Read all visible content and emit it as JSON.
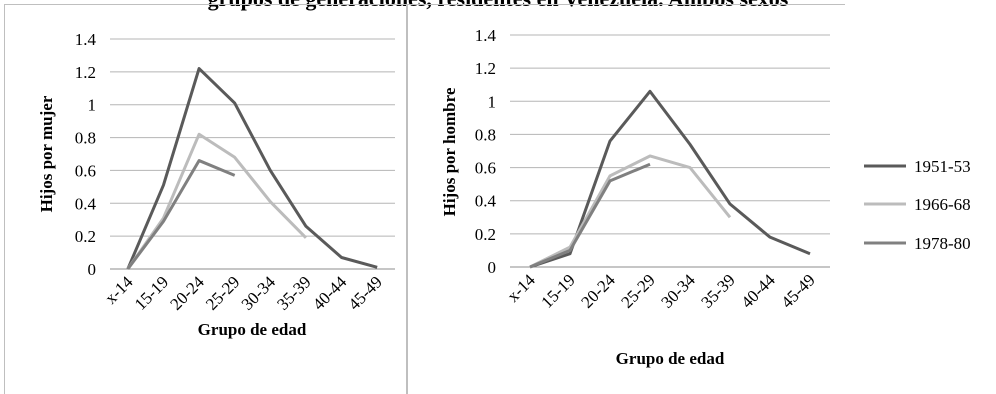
{
  "title": "grupos de generaciones, residentes en Venezuela. Ambos sexos",
  "series_colors": {
    "1951-53": "#5a5a5a",
    "1966-68": "#bcbcbc",
    "1978-80": "#808080"
  },
  "legend": [
    "1951-53",
    "1966-68",
    "1978-80"
  ],
  "chart_data": [
    {
      "type": "line",
      "title": "",
      "xlabel": "Grupo de edad",
      "ylabel": "Hijos por mujer",
      "categories": [
        "x-14",
        "15-19",
        "20-24",
        "25-29",
        "30-34",
        "35-39",
        "40-44",
        "45-49"
      ],
      "ylim": [
        0,
        1.4
      ],
      "yticks": [
        "0",
        "0.2",
        "0.4",
        "0.6",
        "0.8",
        "1",
        "1.2",
        "1.4"
      ],
      "grid": true,
      "series": [
        {
          "name": "1951-53",
          "values": [
            0,
            0.51,
            1.22,
            1.01,
            0.6,
            0.26,
            0.07,
            0.01
          ]
        },
        {
          "name": "1966-68",
          "values": [
            0,
            0.31,
            0.82,
            0.68,
            0.41,
            0.19,
            null,
            null
          ]
        },
        {
          "name": "1978-80",
          "values": [
            0,
            0.29,
            0.66,
            0.57,
            null,
            null,
            null,
            null
          ]
        }
      ]
    },
    {
      "type": "line",
      "title": "",
      "xlabel": "Grupo de edad",
      "ylabel": "Hijos por hombre",
      "categories": [
        "x-14",
        "15-19",
        "20-24",
        "25-29",
        "30-34",
        "35-39",
        "40-44",
        "45-49"
      ],
      "ylim": [
        0,
        1.4
      ],
      "yticks": [
        "0",
        "0.2",
        "0.4",
        "0.6",
        "0.8",
        "1",
        "1.2",
        "1.4"
      ],
      "grid": true,
      "legend_position": "right",
      "series": [
        {
          "name": "1951-53",
          "values": [
            0,
            0.08,
            0.76,
            1.06,
            0.74,
            0.38,
            0.18,
            0.08
          ]
        },
        {
          "name": "1966-68",
          "values": [
            0,
            0.12,
            0.55,
            0.67,
            0.6,
            0.3,
            null,
            null
          ]
        },
        {
          "name": "1978-80",
          "values": [
            0,
            0.1,
            0.52,
            0.62,
            null,
            null,
            null,
            null
          ]
        }
      ]
    }
  ]
}
